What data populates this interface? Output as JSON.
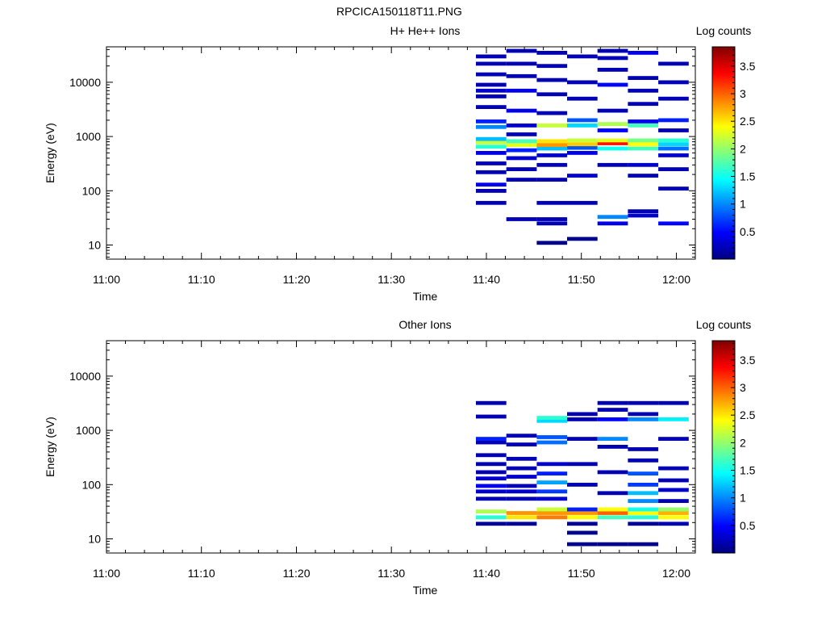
{
  "figure_title": "RPCICA150118T11.PNG",
  "colors": {
    "colormap": [
      "#00007f",
      "#0000ff",
      "#007fff",
      "#00ffff",
      "#7fff7f",
      "#ffff00",
      "#ff7f00",
      "#ff0000",
      "#7f0000"
    ]
  },
  "chart_data": [
    {
      "type": "heatmap",
      "title": "H+ He++ Ions",
      "xlabel": "Time",
      "ylabel": "Energy (eV)",
      "x_ticks": [
        "11:00",
        "11:10",
        "11:20",
        "11:30",
        "11:40",
        "11:50",
        "12:00"
      ],
      "x_range_minutes": [
        0,
        62
      ],
      "y_ticks": [
        "10",
        "100",
        "1000",
        "10000"
      ],
      "y_scale": "log",
      "ylim": [
        5.5,
        45000
      ],
      "colorbar": {
        "label": "Log counts",
        "ticks": [
          "0.5",
          "1",
          "1.5",
          "2",
          "2.5",
          "3",
          "3.5"
        ],
        "range": [
          0,
          3.85
        ]
      },
      "time_bins_minutes": [
        [
          38.9,
          42.1
        ],
        [
          42.1,
          45.3
        ],
        [
          45.3,
          48.5
        ],
        [
          48.5,
          51.7
        ],
        [
          51.7,
          54.9
        ],
        [
          54.9,
          58.1
        ],
        [
          58.1,
          61.3
        ]
      ],
      "cells": [
        [
          0,
          60,
          0.2
        ],
        [
          0,
          100,
          0.2
        ],
        [
          0,
          130,
          0.4
        ],
        [
          0,
          220,
          0.2
        ],
        [
          0,
          320,
          0.2
        ],
        [
          0,
          500,
          0.4
        ],
        [
          0,
          650,
          1.6
        ],
        [
          0,
          780,
          2.2
        ],
        [
          0,
          900,
          1.2
        ],
        [
          0,
          1500,
          1.0
        ],
        [
          0,
          1900,
          0.6
        ],
        [
          0,
          3500,
          0.2
        ],
        [
          0,
          5500,
          0.2
        ],
        [
          0,
          7000,
          0.3
        ],
        [
          0,
          9000,
          0.2
        ],
        [
          0,
          14000,
          0.2
        ],
        [
          0,
          22000,
          0.2
        ],
        [
          0,
          30000,
          0.2
        ],
        [
          1,
          30,
          0.2
        ],
        [
          1,
          160,
          0.2
        ],
        [
          1,
          250,
          0.2
        ],
        [
          1,
          400,
          0.3
        ],
        [
          1,
          560,
          0.6
        ],
        [
          1,
          700,
          2.3
        ],
        [
          1,
          820,
          1.7
        ],
        [
          1,
          1100,
          0.2
        ],
        [
          1,
          1600,
          0.3
        ],
        [
          1,
          3000,
          0.4
        ],
        [
          1,
          7000,
          0.4
        ],
        [
          1,
          13000,
          0.2
        ],
        [
          1,
          22000,
          0.2
        ],
        [
          1,
          38000,
          0.2
        ],
        [
          2,
          11,
          0.05
        ],
        [
          2,
          25,
          0.2
        ],
        [
          2,
          30,
          0.2
        ],
        [
          2,
          60,
          0.2
        ],
        [
          2,
          160,
          0.2
        ],
        [
          2,
          300,
          0.2
        ],
        [
          2,
          450,
          0.3
        ],
        [
          2,
          600,
          1.2
        ],
        [
          2,
          700,
          2.8
        ],
        [
          2,
          820,
          2.5
        ],
        [
          2,
          1600,
          2.2
        ],
        [
          2,
          2700,
          0.2
        ],
        [
          2,
          6000,
          0.2
        ],
        [
          2,
          11000,
          0.2
        ],
        [
          2,
          20000,
          0.2
        ],
        [
          2,
          35000,
          0.2
        ],
        [
          3,
          13,
          0.05
        ],
        [
          3,
          60,
          0.2
        ],
        [
          3,
          190,
          0.3
        ],
        [
          3,
          500,
          0.4
        ],
        [
          3,
          620,
          0.8
        ],
        [
          3,
          720,
          2.6
        ],
        [
          3,
          850,
          2.2
        ],
        [
          3,
          1600,
          1.3
        ],
        [
          3,
          2000,
          0.8
        ],
        [
          3,
          5000,
          0.2
        ],
        [
          3,
          10000,
          0.2
        ],
        [
          3,
          30000,
          0.2
        ],
        [
          4,
          25,
          0.4
        ],
        [
          4,
          33,
          1.0
        ],
        [
          4,
          300,
          0.2
        ],
        [
          4,
          600,
          1.5
        ],
        [
          4,
          750,
          3.3
        ],
        [
          4,
          850,
          2.3
        ],
        [
          4,
          1300,
          0.5
        ],
        [
          4,
          1700,
          2.1
        ],
        [
          4,
          3000,
          0.2
        ],
        [
          4,
          9000,
          0.5
        ],
        [
          4,
          17000,
          0.2
        ],
        [
          4,
          28000,
          0.2
        ],
        [
          4,
          38000,
          0.2
        ],
        [
          5,
          35,
          0.3
        ],
        [
          5,
          42,
          0.2
        ],
        [
          5,
          190,
          0.2
        ],
        [
          5,
          300,
          0.3
        ],
        [
          5,
          600,
          1.7
        ],
        [
          5,
          720,
          2.4
        ],
        [
          5,
          850,
          1.9
        ],
        [
          5,
          1600,
          1.7
        ],
        [
          5,
          1900,
          0.4
        ],
        [
          5,
          4000,
          0.2
        ],
        [
          5,
          7000,
          0.2
        ],
        [
          5,
          12000,
          0.2
        ],
        [
          5,
          35000,
          0.4
        ],
        [
          6,
          25,
          0.5
        ],
        [
          6,
          110,
          0.2
        ],
        [
          6,
          250,
          0.2
        ],
        [
          6,
          450,
          0.3
        ],
        [
          6,
          600,
          0.9
        ],
        [
          6,
          720,
          1.3
        ],
        [
          6,
          850,
          1.6
        ],
        [
          6,
          1300,
          0.2
        ],
        [
          6,
          2000,
          0.6
        ],
        [
          6,
          5000,
          0.2
        ],
        [
          6,
          10000,
          0.2
        ],
        [
          6,
          22000,
          0.2
        ]
      ]
    },
    {
      "type": "heatmap",
      "title": "Other Ions",
      "xlabel": "Time",
      "ylabel": "Energy (eV)",
      "x_ticks": [
        "11:00",
        "11:10",
        "11:20",
        "11:30",
        "11:40",
        "11:50",
        "12:00"
      ],
      "x_range_minutes": [
        0,
        62
      ],
      "y_ticks": [
        "10",
        "100",
        "1000",
        "10000"
      ],
      "y_scale": "log",
      "ylim": [
        5.5,
        45000
      ],
      "colorbar": {
        "label": "Log counts",
        "ticks": [
          "0.5",
          "1",
          "1.5",
          "2",
          "2.5",
          "3",
          "3.5"
        ],
        "range": [
          0,
          3.85
        ]
      },
      "time_bins_minutes": [
        [
          38.9,
          42.1
        ],
        [
          42.1,
          45.3
        ],
        [
          45.3,
          48.5
        ],
        [
          48.5,
          51.7
        ],
        [
          51.7,
          54.9
        ],
        [
          54.9,
          58.1
        ],
        [
          58.1,
          61.3
        ]
      ],
      "cells": [
        [
          0,
          19,
          0.1
        ],
        [
          0,
          25,
          1.6
        ],
        [
          0,
          32,
          2.1
        ],
        [
          0,
          55,
          0.2
        ],
        [
          0,
          75,
          0.3
        ],
        [
          0,
          95,
          0.4
        ],
        [
          0,
          130,
          0.3
        ],
        [
          0,
          170,
          0.2
        ],
        [
          0,
          240,
          0.2
        ],
        [
          0,
          350,
          0.2
        ],
        [
          0,
          600,
          0.2
        ],
        [
          0,
          700,
          0.6
        ],
        [
          0,
          1800,
          0.2
        ],
        [
          0,
          3200,
          0.2
        ],
        [
          1,
          19,
          0.1
        ],
        [
          1,
          25,
          2.5
        ],
        [
          1,
          30,
          2.8
        ],
        [
          1,
          55,
          0.2
        ],
        [
          1,
          75,
          0.3
        ],
        [
          1,
          95,
          0.2
        ],
        [
          1,
          140,
          0.3
        ],
        [
          1,
          200,
          0.2
        ],
        [
          1,
          300,
          0.2
        ],
        [
          1,
          550,
          0.2
        ],
        [
          1,
          800,
          0.2
        ],
        [
          2,
          25,
          2.9
        ],
        [
          2,
          30,
          2.8
        ],
        [
          2,
          35,
          2.2
        ],
        [
          2,
          55,
          0.3
        ],
        [
          2,
          75,
          0.7
        ],
        [
          2,
          110,
          1.1
        ],
        [
          2,
          160,
          0.6
        ],
        [
          2,
          240,
          0.3
        ],
        [
          2,
          600,
          0.9
        ],
        [
          2,
          750,
          0.8
        ],
        [
          2,
          1500,
          1.3
        ],
        [
          2,
          1700,
          1.6
        ],
        [
          3,
          8,
          0.05
        ],
        [
          3,
          13,
          0.05
        ],
        [
          3,
          19,
          0.1
        ],
        [
          3,
          25,
          2.4
        ],
        [
          3,
          30,
          2.8
        ],
        [
          3,
          35,
          0.6
        ],
        [
          3,
          100,
          0.2
        ],
        [
          3,
          240,
          0.2
        ],
        [
          3,
          700,
          0.2
        ],
        [
          3,
          1600,
          0.2
        ],
        [
          3,
          2000,
          0.2
        ],
        [
          4,
          8,
          0.05
        ],
        [
          4,
          25,
          1.7
        ],
        [
          4,
          30,
          3.0
        ],
        [
          4,
          35,
          2.4
        ],
        [
          4,
          70,
          0.2
        ],
        [
          4,
          170,
          0.2
        ],
        [
          4,
          500,
          0.2
        ],
        [
          4,
          700,
          1.0
        ],
        [
          4,
          1600,
          0.5
        ],
        [
          4,
          2400,
          0.2
        ],
        [
          4,
          3200,
          0.2
        ],
        [
          5,
          8,
          0.05
        ],
        [
          5,
          19,
          0.1
        ],
        [
          5,
          25,
          1.6
        ],
        [
          5,
          30,
          2.4
        ],
        [
          5,
          35,
          1.5
        ],
        [
          5,
          50,
          1.0
        ],
        [
          5,
          70,
          1.2
        ],
        [
          5,
          100,
          0.7
        ],
        [
          5,
          160,
          0.8
        ],
        [
          5,
          280,
          0.2
        ],
        [
          5,
          450,
          0.2
        ],
        [
          5,
          1600,
          1.0
        ],
        [
          5,
          2000,
          0.2
        ],
        [
          5,
          3200,
          0.2
        ],
        [
          6,
          19,
          0.2
        ],
        [
          6,
          25,
          2.4
        ],
        [
          6,
          30,
          2.7
        ],
        [
          6,
          35,
          2.0
        ],
        [
          6,
          50,
          0.2
        ],
        [
          6,
          80,
          0.3
        ],
        [
          6,
          120,
          0.2
        ],
        [
          6,
          200,
          0.2
        ],
        [
          6,
          700,
          0.2
        ],
        [
          6,
          1600,
          1.4
        ],
        [
          6,
          3200,
          0.2
        ]
      ]
    }
  ]
}
